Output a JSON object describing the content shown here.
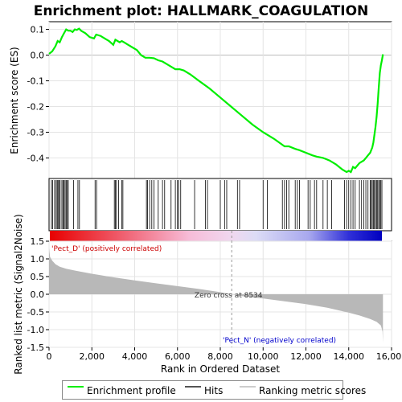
{
  "chart_data": {
    "type": "line",
    "title": "Enrichment plot: HALLMARK_COAGULATION",
    "top_panel": {
      "ylabel": "Enrichment score (ES)",
      "ylim": [
        -0.48,
        0.13
      ],
      "yticks": [
        "0.1",
        "0.0",
        "-0.1",
        "-0.2",
        "-0.3",
        "-0.4"
      ],
      "ytick_values": [
        0.1,
        0.0,
        -0.1,
        -0.2,
        -0.3,
        -0.4
      ],
      "series": [
        {
          "name": "Enrichment profile",
          "color": "#00ee00",
          "x": [
            0,
            150,
            300,
            400,
            500,
            600,
            700,
            800,
            900,
            1000,
            1100,
            1200,
            1300,
            1400,
            1500,
            1700,
            1900,
            2100,
            2200,
            2400,
            2600,
            2800,
            3000,
            3100,
            3200,
            3300,
            3400,
            3500,
            3700,
            3900,
            4100,
            4300,
            4500,
            4700,
            4900,
            5100,
            5300,
            5500,
            5700,
            5900,
            6100,
            6300,
            6600,
            7000,
            7500,
            8000,
            8500,
            9000,
            9500,
            10000,
            10500,
            11000,
            11200,
            11500,
            11700,
            12000,
            12300,
            12500,
            12800,
            13100,
            13400,
            13700,
            13900,
            14000,
            14100,
            14200,
            14300,
            14400,
            14500,
            14600,
            14700,
            14800,
            14900,
            15000,
            15100,
            15150,
            15200,
            15250,
            15300,
            15350,
            15400,
            15450,
            15500,
            15550,
            15600
          ],
          "y": [
            0.005,
            0.015,
            0.035,
            0.055,
            0.05,
            0.07,
            0.085,
            0.1,
            0.095,
            0.095,
            0.09,
            0.1,
            0.098,
            0.103,
            0.095,
            0.085,
            0.07,
            0.065,
            0.08,
            0.075,
            0.065,
            0.055,
            0.04,
            0.06,
            0.055,
            0.05,
            0.055,
            0.05,
            0.04,
            0.03,
            0.02,
            0.0,
            -0.01,
            -0.01,
            -0.012,
            -0.02,
            -0.025,
            -0.035,
            -0.045,
            -0.055,
            -0.055,
            -0.06,
            -0.075,
            -0.1,
            -0.13,
            -0.165,
            -0.2,
            -0.235,
            -0.27,
            -0.3,
            -0.325,
            -0.355,
            -0.355,
            -0.365,
            -0.37,
            -0.38,
            -0.39,
            -0.395,
            -0.4,
            -0.41,
            -0.425,
            -0.445,
            -0.455,
            -0.45,
            -0.455,
            -0.435,
            -0.44,
            -0.43,
            -0.42,
            -0.415,
            -0.41,
            -0.4,
            -0.39,
            -0.38,
            -0.36,
            -0.34,
            -0.31,
            -0.28,
            -0.24,
            -0.19,
            -0.13,
            -0.07,
            -0.04,
            -0.02,
            0.003
          ]
        }
      ]
    },
    "hits_panel": {
      "legend_name": "Hits",
      "hit_positions": [
        110,
        170,
        260,
        330,
        380,
        420,
        470,
        520,
        600,
        650,
        700,
        750,
        800,
        850,
        900,
        1150,
        1350,
        1420,
        2150,
        2220,
        3050,
        3100,
        3150,
        3250,
        3400,
        3450,
        4550,
        4600,
        4700,
        4800,
        4900,
        5100,
        5300,
        5400,
        5700,
        5900,
        6000,
        6050,
        6150,
        6800,
        7300,
        7400,
        8000,
        8200,
        8300,
        8800,
        8900,
        10000,
        10200,
        10900,
        11000,
        11100,
        11200,
        11500,
        11600,
        11700,
        12100,
        12200,
        12400,
        12500,
        12800,
        13000,
        13200,
        13800,
        13900,
        14000,
        14100,
        14200,
        14300,
        14500,
        14600,
        14700,
        14800,
        14900,
        15000,
        15050,
        15100,
        15150,
        15200,
        15250,
        15300,
        15350,
        15400,
        15450,
        15500,
        15550
      ]
    },
    "ranking_panel": {
      "legend_name": "Ranking metric scores",
      "ylabel": "Ranked list metric (Signal2Noise)",
      "xlabel": "Rank in Ordered Dataset",
      "ylim": [
        -1.5,
        1.5
      ],
      "yticks": [
        "1.5",
        "1.0",
        "0.5",
        "0.0",
        "-0.5",
        "-1.0",
        "-1.5"
      ],
      "ytick_values": [
        1.5,
        1.0,
        0.5,
        0.0,
        -0.5,
        -1.0,
        -1.5
      ],
      "xlim": [
        0,
        16000
      ],
      "xticks": [
        "0",
        "2,000",
        "4,000",
        "6,000",
        "8,000",
        "10,000",
        "12,000",
        "14,000",
        "16,000"
      ],
      "xtick_values": [
        0,
        2000,
        4000,
        6000,
        8000,
        10000,
        12000,
        14000,
        16000
      ],
      "n_genes": 15600,
      "metric_x": [
        0,
        50,
        150,
        300,
        500,
        800,
        1200,
        2000,
        3000,
        4000,
        5000,
        6000,
        7000,
        8000,
        8534,
        9000,
        10000,
        11000,
        12000,
        13000,
        14000,
        14500,
        15000,
        15300,
        15500,
        15580,
        15600
      ],
      "metric_y": [
        1.3,
        1.05,
        0.95,
        0.85,
        0.78,
        0.72,
        0.67,
        0.58,
        0.48,
        0.39,
        0.31,
        0.23,
        0.15,
        0.06,
        0.0,
        -0.05,
        -0.12,
        -0.2,
        -0.28,
        -0.38,
        -0.52,
        -0.6,
        -0.7,
        -0.78,
        -0.88,
        -1.05,
        -1.38
      ],
      "zero_cross_label": "Zero cross at 8534",
      "zero_cross": 8534,
      "pos_label": "'Pect_D' (positively correlated)",
      "neg_label": "'Pect_N' (negatively correlated)"
    },
    "legend": {
      "position": "bottom",
      "entries": [
        "Enrichment profile",
        "Hits",
        "Ranking metric scores"
      ]
    }
  }
}
